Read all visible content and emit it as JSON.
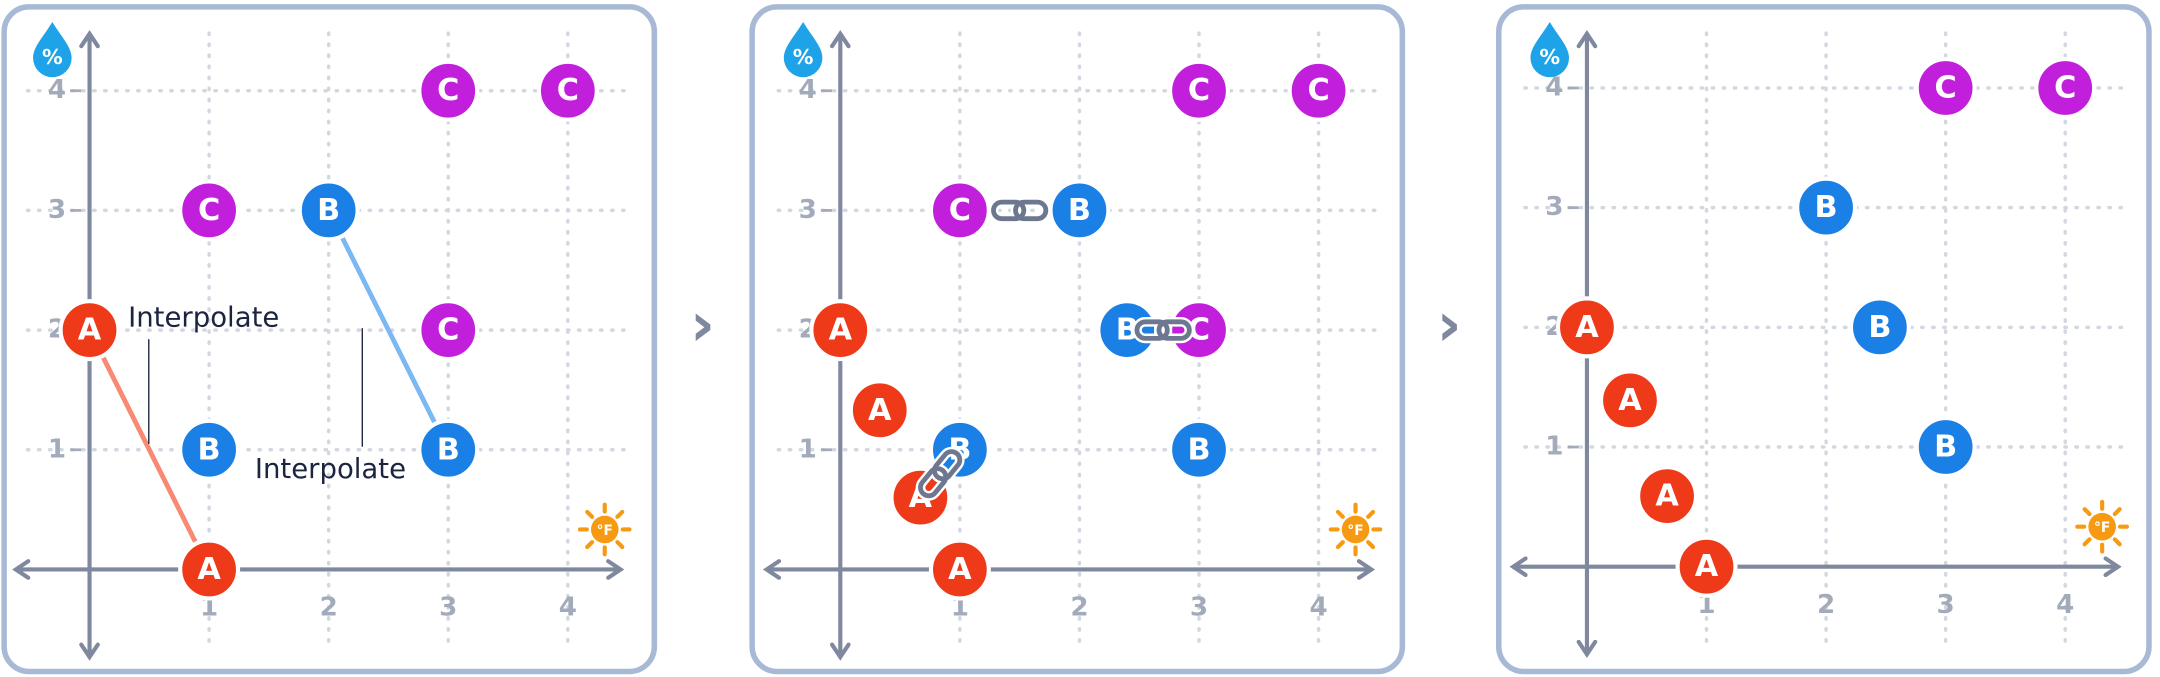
{
  "y_icon": "%",
  "x_icon": "°F",
  "separators": [
    "›",
    "›"
  ],
  "point_colors": {
    "A": "#ef3a1a",
    "B": "#1a80e6",
    "C": "#c21fdc"
  },
  "panels": [
    {
      "xticks": [
        1,
        2,
        3,
        4
      ],
      "yticks": [
        1,
        2,
        3,
        4
      ],
      "annotations": [
        "Interpolate",
        "Interpolate"
      ],
      "points": [
        {
          "label": "C",
          "x": 3,
          "y": 4
        },
        {
          "label": "C",
          "x": 4,
          "y": 4
        },
        {
          "label": "C",
          "x": 1,
          "y": 3
        },
        {
          "label": "B",
          "x": 2,
          "y": 3
        },
        {
          "label": "C",
          "x": 3,
          "y": 2
        },
        {
          "label": "A",
          "x": 0,
          "y": 2
        },
        {
          "label": "B",
          "x": 1,
          "y": 1
        },
        {
          "label": "B",
          "x": 3,
          "y": 1
        },
        {
          "label": "A",
          "x": 1,
          "y": 0
        }
      ]
    },
    {
      "xticks": [
        1,
        2,
        3,
        4
      ],
      "yticks": [
        1,
        2,
        3,
        4
      ],
      "points": [
        {
          "label": "C",
          "x": 3,
          "y": 4
        },
        {
          "label": "C",
          "x": 4,
          "y": 4
        },
        {
          "label": "C",
          "x": 1,
          "y": 3
        },
        {
          "label": "B",
          "x": 2,
          "y": 3
        },
        {
          "label": "B",
          "x": 2.4,
          "y": 2
        },
        {
          "label": "C",
          "x": 3,
          "y": 2
        },
        {
          "label": "A",
          "x": 0,
          "y": 2
        },
        {
          "label": "A",
          "x": 0.33,
          "y": 1.33
        },
        {
          "label": "B",
          "x": 1,
          "y": 1
        },
        {
          "label": "A",
          "x": 0.67,
          "y": 0.6
        },
        {
          "label": "B",
          "x": 3,
          "y": 1
        },
        {
          "label": "A",
          "x": 1,
          "y": 0
        }
      ]
    },
    {
      "xticks": [
        1,
        2,
        3,
        4
      ],
      "yticks": [
        1,
        2,
        3,
        4
      ],
      "points": [
        {
          "label": "C",
          "x": 3,
          "y": 4
        },
        {
          "label": "C",
          "x": 4,
          "y": 4
        },
        {
          "label": "B",
          "x": 2,
          "y": 3
        },
        {
          "label": "B",
          "x": 2.45,
          "y": 2
        },
        {
          "label": "A",
          "x": 0,
          "y": 2
        },
        {
          "label": "A",
          "x": 0.36,
          "y": 1.39
        },
        {
          "label": "B",
          "x": 3,
          "y": 1
        },
        {
          "label": "A",
          "x": 0.67,
          "y": 0.59
        },
        {
          "label": "A",
          "x": 1,
          "y": 0
        }
      ]
    }
  ]
}
